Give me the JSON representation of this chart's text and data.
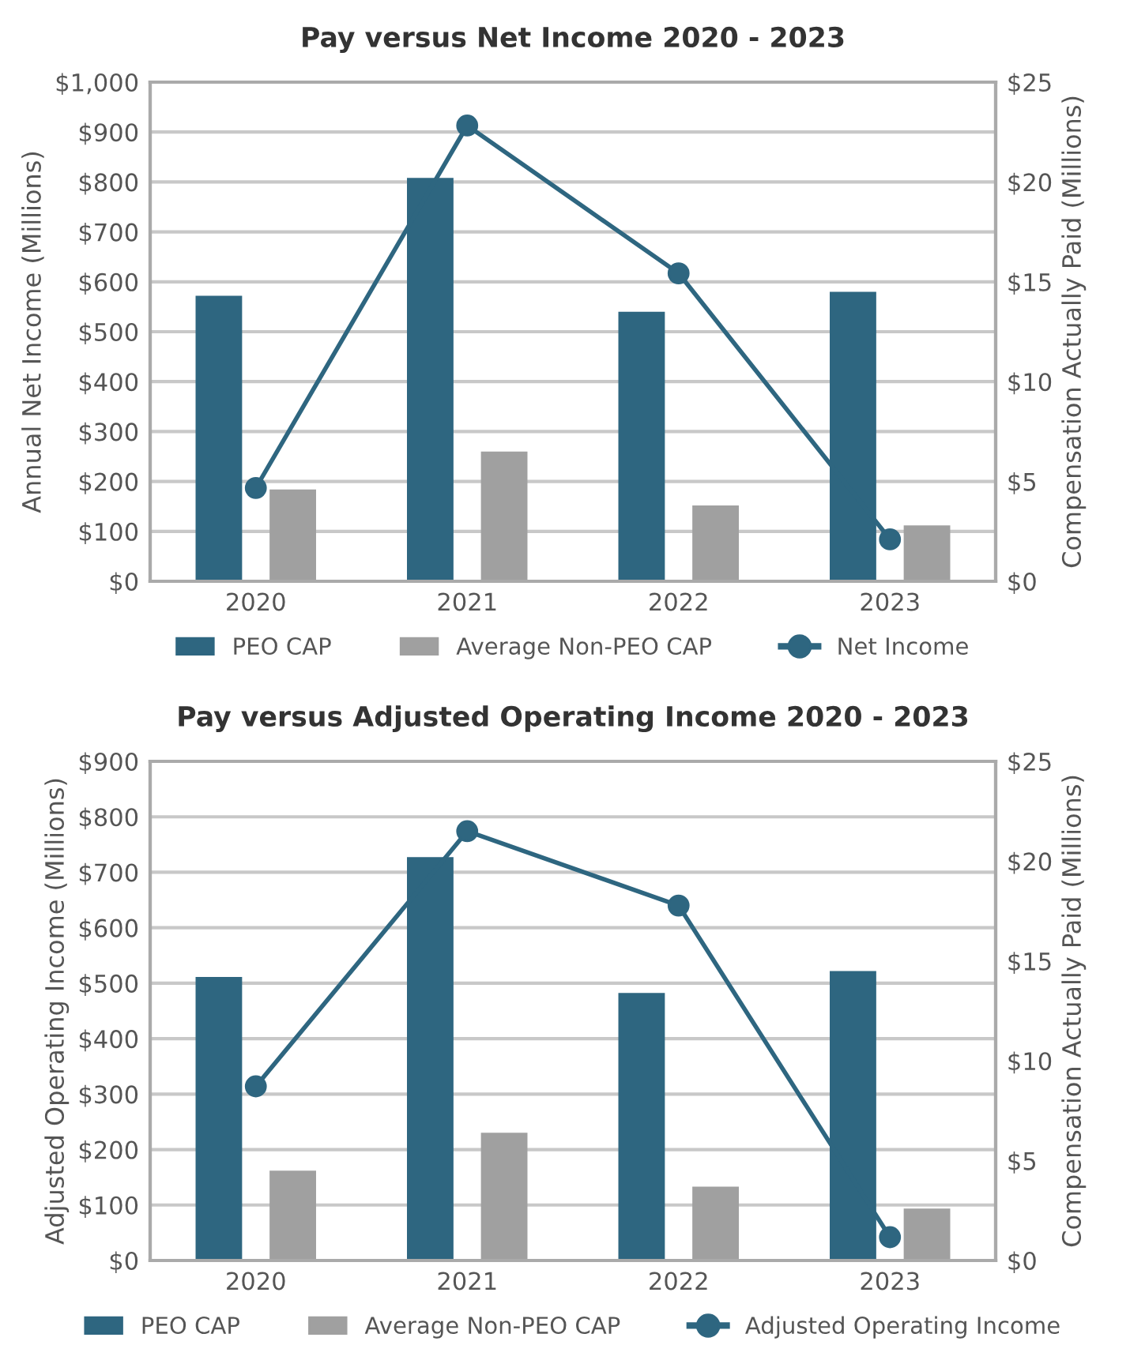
{
  "chart_data": [
    {
      "type": "bar",
      "title": "Pay versus Net Income 2020 - 2023",
      "ylabel": "Annual Net Income (Millions)",
      "y2label": "Compensation Actually Paid (Millions)",
      "categories": [
        "2020",
        "2021",
        "2022",
        "2023"
      ],
      "series": [
        {
          "name": "PEO CAP",
          "axis": "y2",
          "color": "#2e6680",
          "values": [
            14.3,
            20.2,
            13.5,
            14.5
          ]
        },
        {
          "name": "Average Non-PEO CAP",
          "axis": "y2",
          "color": "#a0a0a0",
          "values": [
            4.6,
            6.5,
            3.8,
            2.8
          ]
        },
        {
          "name": "Net Income",
          "type": "line",
          "axis": "y",
          "color": "#2e6680",
          "marker": "circle",
          "values": [
            187,
            913,
            617,
            84
          ]
        }
      ],
      "ylim": [
        0,
        1000
      ],
      "yticks": [
        {
          "value": 0,
          "label": "$0"
        },
        {
          "value": 100,
          "label": "$100"
        },
        {
          "value": 200,
          "label": "$200"
        },
        {
          "value": 300,
          "label": "$300"
        },
        {
          "value": 400,
          "label": "$400"
        },
        {
          "value": 500,
          "label": "$500"
        },
        {
          "value": 600,
          "label": "$600"
        },
        {
          "value": 700,
          "label": "$700"
        },
        {
          "value": 800,
          "label": "$800"
        },
        {
          "value": 900,
          "label": "$900"
        },
        {
          "value": 1000,
          "label": "$1,000"
        }
      ],
      "y2lim": [
        0,
        25
      ],
      "y2ticks": [
        {
          "value": 0,
          "label": "$0"
        },
        {
          "value": 5,
          "label": "$5"
        },
        {
          "value": 10,
          "label": "$10"
        },
        {
          "value": 15,
          "label": "$15"
        },
        {
          "value": 20,
          "label": "$20"
        },
        {
          "value": 25,
          "label": "$25"
        }
      ],
      "grid": "y",
      "legend": "bottom"
    },
    {
      "type": "bar",
      "title": "Pay versus Adjusted Operating Income 2020 - 2023",
      "ylabel": "Adjusted Operating Income (Millions)",
      "y2label": "Compensation Actually Paid (Millions)",
      "categories": [
        "2020",
        "2021",
        "2022",
        "2023"
      ],
      "series": [
        {
          "name": "PEO CAP",
          "axis": "y2",
          "color": "#2e6680",
          "values": [
            14.2,
            20.2,
            13.4,
            14.5
          ]
        },
        {
          "name": "Average Non-PEO CAP",
          "axis": "y2",
          "color": "#a0a0a0",
          "values": [
            4.5,
            6.4,
            3.7,
            2.6
          ]
        },
        {
          "name": "Adjusted Operating Income",
          "type": "line",
          "axis": "y",
          "color": "#2e6680",
          "marker": "circle",
          "values": [
            314,
            774,
            640,
            42
          ]
        }
      ],
      "ylim": [
        0,
        900
      ],
      "yticks": [
        {
          "value": 0,
          "label": "$0"
        },
        {
          "value": 100,
          "label": "$100"
        },
        {
          "value": 200,
          "label": "$200"
        },
        {
          "value": 300,
          "label": "$300"
        },
        {
          "value": 400,
          "label": "$400"
        },
        {
          "value": 500,
          "label": "$500"
        },
        {
          "value": 600,
          "label": "$600"
        },
        {
          "value": 700,
          "label": "$700"
        },
        {
          "value": 800,
          "label": "$800"
        },
        {
          "value": 900,
          "label": "$900"
        }
      ],
      "y2lim": [
        0,
        25
      ],
      "y2ticks": [
        {
          "value": 0,
          "label": "$0"
        },
        {
          "value": 5,
          "label": "$5"
        },
        {
          "value": 10,
          "label": "$10"
        },
        {
          "value": 15,
          "label": "$15"
        },
        {
          "value": 20,
          "label": "$20"
        },
        {
          "value": 25,
          "label": "$25"
        }
      ],
      "grid": "y",
      "legend": "bottom"
    }
  ]
}
